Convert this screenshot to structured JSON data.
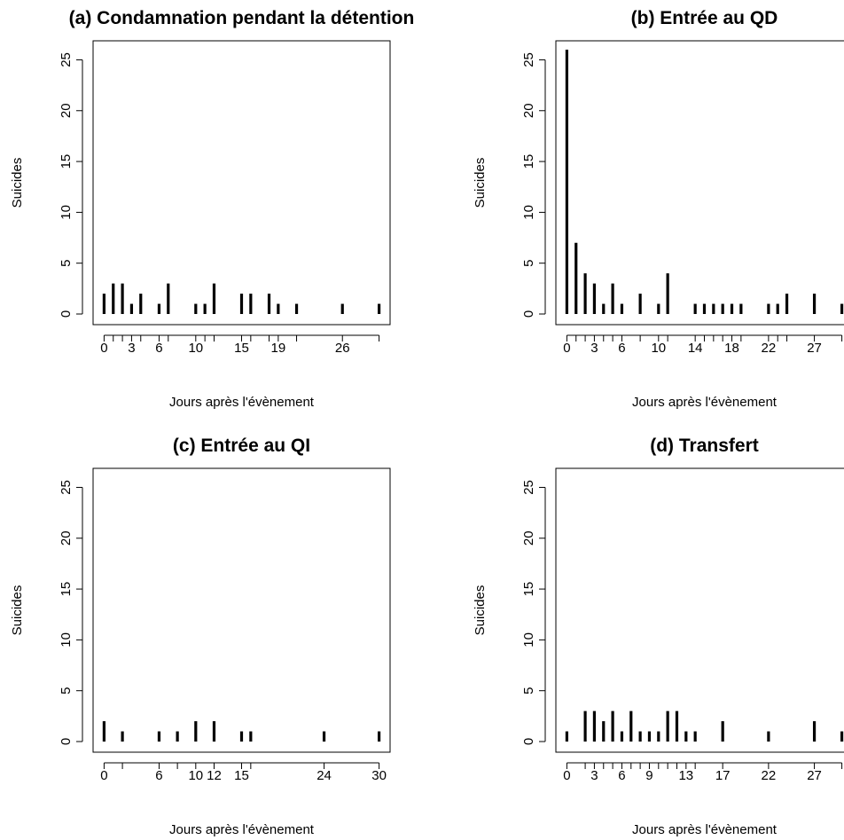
{
  "chart_data": [
    {
      "type": "bar",
      "title": "(a) Condamnation pendant la détention",
      "xlabel": "Jours après l'évènement",
      "ylabel": "Suicides",
      "xlim": [
        -1.2,
        31.2
      ],
      "ylim": [
        0,
        26
      ],
      "yticks": [
        0,
        5,
        10,
        15,
        20,
        25
      ],
      "xticks": [
        0,
        1,
        2,
        3,
        4,
        6,
        7,
        10,
        11,
        12,
        15,
        16,
        18,
        19,
        21,
        26,
        30
      ],
      "xtick_labels": [
        "0",
        "",
        "",
        "3",
        "",
        "6",
        "",
        "10",
        "",
        "",
        "15",
        "",
        "",
        "19",
        "",
        "26",
        ""
      ],
      "x": [
        0,
        1,
        2,
        3,
        4,
        6,
        7,
        10,
        11,
        12,
        15,
        16,
        18,
        19,
        21,
        26,
        30
      ],
      "values": [
        2,
        3,
        3,
        1,
        2,
        1,
        3,
        1,
        1,
        3,
        2,
        2,
        2,
        1,
        1,
        1,
        1
      ]
    },
    {
      "type": "bar",
      "title": "(b) Entrée au QD",
      "xlabel": "Jours après l'évènement",
      "ylabel": "Suicides",
      "xlim": [
        -1.2,
        31.2
      ],
      "ylim": [
        0,
        26
      ],
      "yticks": [
        0,
        5,
        10,
        15,
        20,
        25
      ],
      "xticks": [
        0,
        1,
        2,
        3,
        4,
        5,
        6,
        8,
        10,
        11,
        14,
        15,
        16,
        17,
        18,
        19,
        22,
        23,
        24,
        27,
        30
      ],
      "xtick_labels": [
        "0",
        "",
        "",
        "3",
        "",
        "",
        "6",
        "",
        "10",
        "",
        "14",
        "",
        "",
        "",
        "18",
        "",
        "22",
        "",
        "",
        "27",
        ""
      ],
      "x": [
        0,
        1,
        2,
        3,
        4,
        5,
        6,
        8,
        10,
        11,
        14,
        15,
        16,
        17,
        18,
        19,
        22,
        23,
        24,
        27,
        30
      ],
      "values": [
        26,
        7,
        4,
        3,
        1,
        3,
        1,
        2,
        1,
        4,
        1,
        1,
        1,
        1,
        1,
        1,
        1,
        1,
        2,
        2,
        1
      ]
    },
    {
      "type": "bar",
      "title": "(c) Entrée au QI",
      "xlabel": "Jours après l'évènement",
      "ylabel": "Suicides",
      "xlim": [
        -1.2,
        31.2
      ],
      "ylim": [
        0,
        26
      ],
      "yticks": [
        0,
        5,
        10,
        15,
        20,
        25
      ],
      "xticks": [
        0,
        2,
        6,
        8,
        10,
        12,
        15,
        16,
        24,
        30
      ],
      "xtick_labels": [
        "0",
        "",
        "6",
        "",
        "10",
        "12",
        "15",
        "",
        "24",
        "30"
      ],
      "x": [
        0,
        2,
        6,
        8,
        10,
        12,
        15,
        16,
        24,
        30
      ],
      "values": [
        2,
        1,
        1,
        1,
        2,
        2,
        1,
        1,
        1,
        1
      ]
    },
    {
      "type": "bar",
      "title": "(d) Transfert",
      "xlabel": "Jours après l'évènement",
      "ylabel": "Suicides",
      "xlim": [
        -1.2,
        31.2
      ],
      "ylim": [
        0,
        26
      ],
      "yticks": [
        0,
        5,
        10,
        15,
        20,
        25
      ],
      "xticks": [
        0,
        2,
        3,
        4,
        5,
        6,
        7,
        8,
        9,
        10,
        11,
        12,
        13,
        14,
        17,
        22,
        27,
        30
      ],
      "xtick_labels": [
        "0",
        "",
        "3",
        "",
        "",
        "6",
        "",
        "",
        "9",
        "",
        "",
        "",
        "13",
        "",
        "17",
        "22",
        "27",
        ""
      ],
      "x": [
        0,
        2,
        3,
        4,
        5,
        6,
        7,
        8,
        9,
        10,
        11,
        12,
        13,
        14,
        17,
        22,
        27,
        30
      ],
      "values": [
        1,
        3,
        3,
        2,
        3,
        1,
        3,
        1,
        1,
        1,
        3,
        3,
        1,
        1,
        2,
        1,
        2,
        1
      ]
    }
  ]
}
